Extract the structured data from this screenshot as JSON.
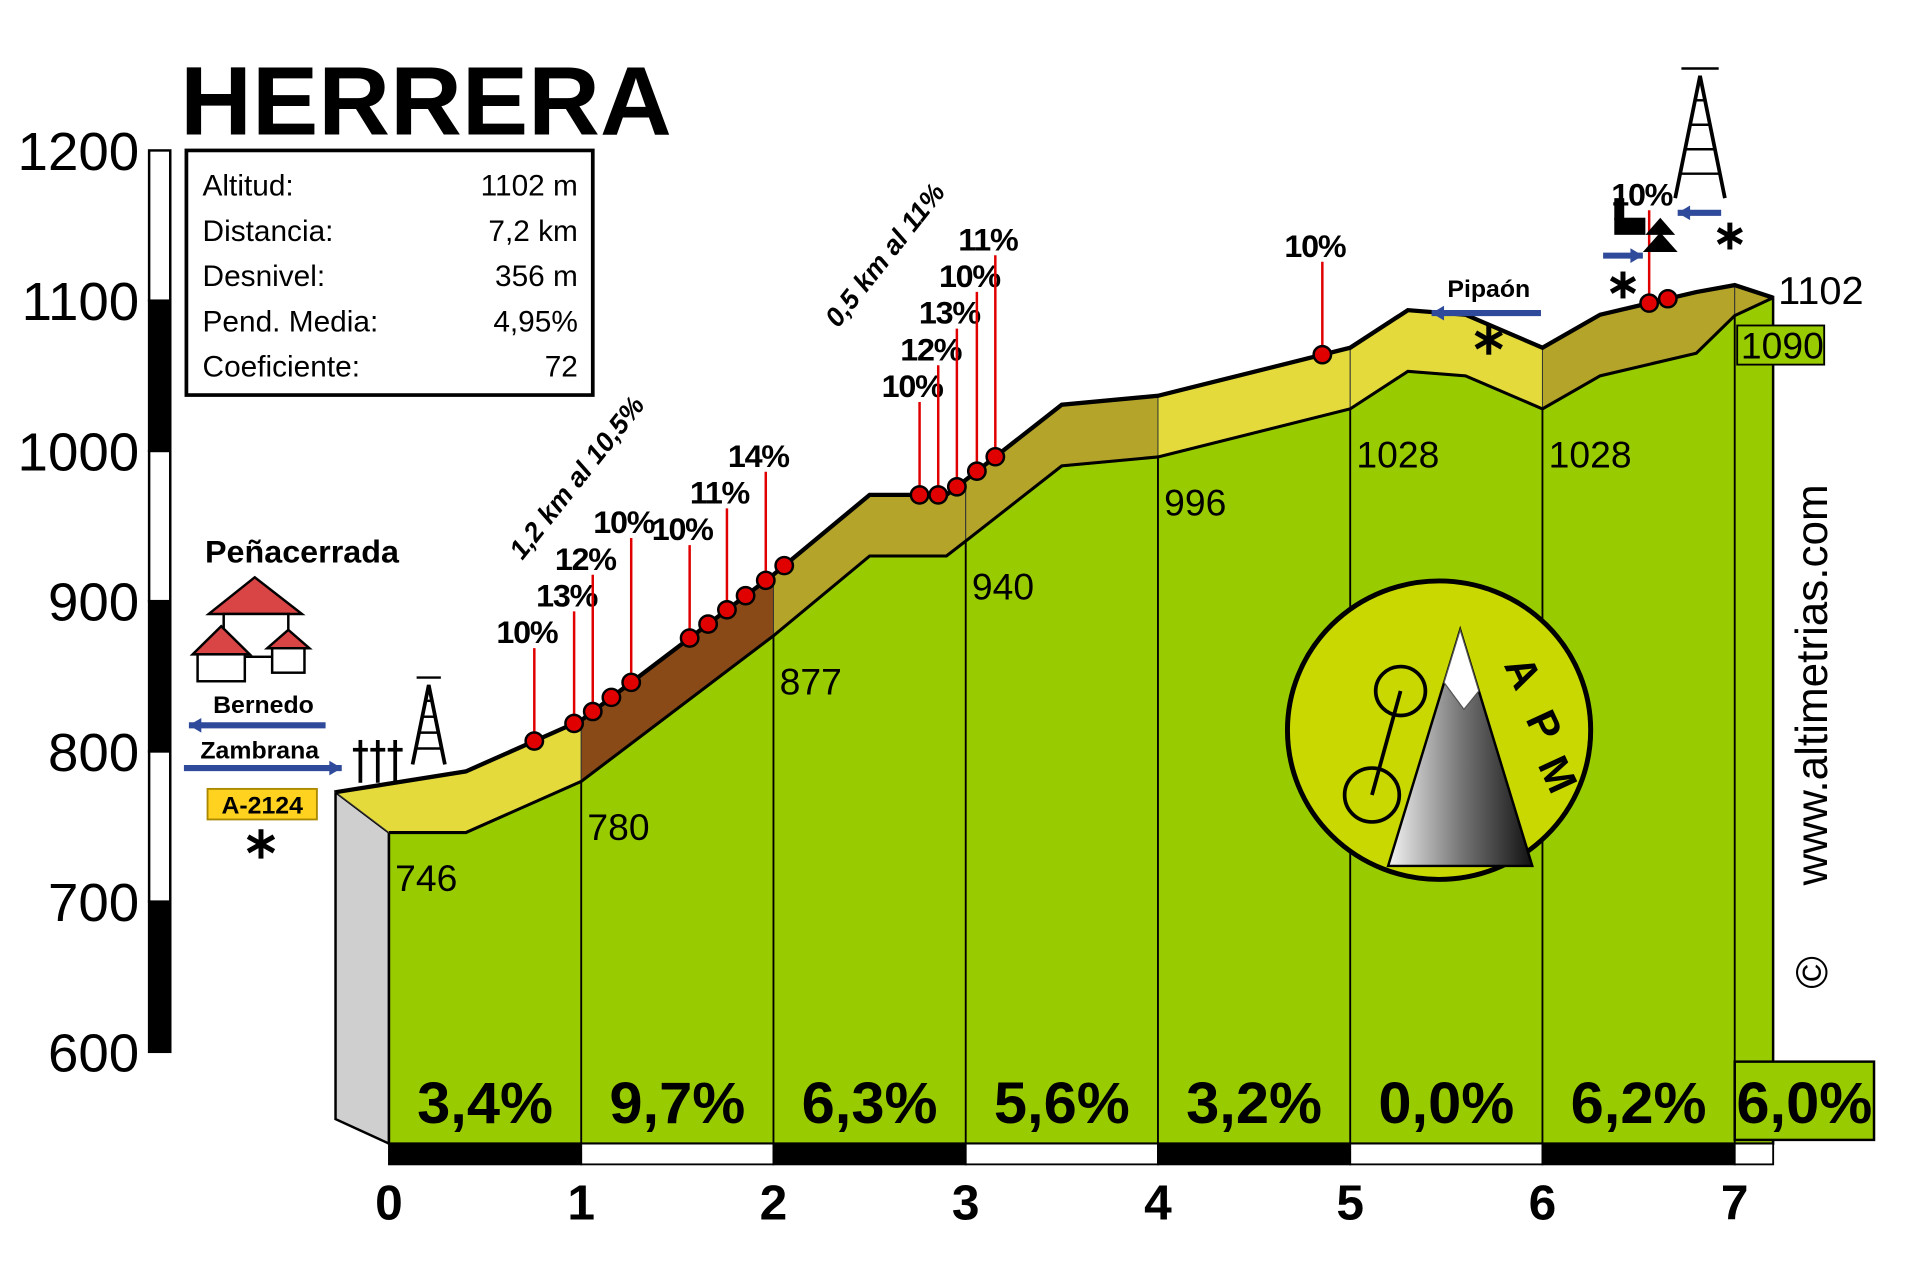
{
  "chart_data": {
    "type": "elevation_profile",
    "title": "HERRERA",
    "info": [
      [
        "Altitud:",
        "1102 m"
      ],
      [
        "Distancia:",
        "7,2 km"
      ],
      [
        "Desnivel:",
        "356 m"
      ],
      [
        "Pend. Media:",
        "4,95%"
      ],
      [
        "Coeficiente:",
        "72"
      ]
    ],
    "xlim": [
      0,
      7.2
    ],
    "xticks": [
      0,
      1,
      2,
      3,
      4,
      5,
      6,
      7
    ],
    "ylim": [
      600,
      1200
    ],
    "yticks": [
      600,
      700,
      800,
      900,
      1000,
      1100,
      1200
    ],
    "profile": {
      "x": [
        0,
        0.4,
        1,
        2,
        2.5,
        2.9,
        3,
        3.5,
        4,
        5,
        5.3,
        5.6,
        6,
        6.3,
        6.8,
        7,
        7.2
      ],
      "values": [
        746,
        746,
        780,
        877,
        930,
        930,
        940,
        990,
        996,
        1028,
        1053,
        1050,
        1028,
        1050,
        1065,
        1090,
        1102
      ]
    },
    "km_elevations": {
      "x": [
        0,
        1,
        2,
        3,
        4,
        5,
        6,
        7,
        7.2
      ],
      "values": [
        746,
        780,
        877,
        940,
        996,
        1028,
        1028,
        1090,
        1102
      ]
    },
    "gradients": {
      "values": [
        3.4,
        9.7,
        6.3,
        5.6,
        3.2,
        0.0,
        6.2,
        6.0
      ],
      "value_labels": [
        "3,4%",
        "9,7%",
        "6,3%",
        "5,6%",
        "3,2%",
        "0,0%",
        "6,2%",
        "6,0%"
      ]
    },
    "ramps": {
      "x": [
        0.756,
        0.963,
        1.06,
        1.157,
        1.26,
        1.564,
        1.66,
        1.758,
        1.855,
        1.96,
        2.056,
        2.76,
        2.857,
        2.954,
        3.058,
        3.154,
        4.855,
        6.555,
        6.652
      ],
      "labels": [
        "10%",
        "13%",
        "12%",
        null,
        "10%",
        "10%",
        null,
        "11%",
        null,
        "14%",
        null,
        "10%",
        "12%",
        "13%",
        "10%",
        "11%",
        "10%",
        "10%",
        null
      ]
    },
    "stretch_notes": [
      "1,2 km al 10,5%",
      "0,5 km al 11%"
    ],
    "places": {
      "start": "Peñacerrada",
      "left_road": "Bernedo",
      "right_road": "Zambrana",
      "road_code": "A-2124",
      "junction": "Pipaón"
    },
    "website": "www.altimetrias.com",
    "copyright": "©",
    "logo": [
      "A",
      "P",
      "M"
    ]
  }
}
